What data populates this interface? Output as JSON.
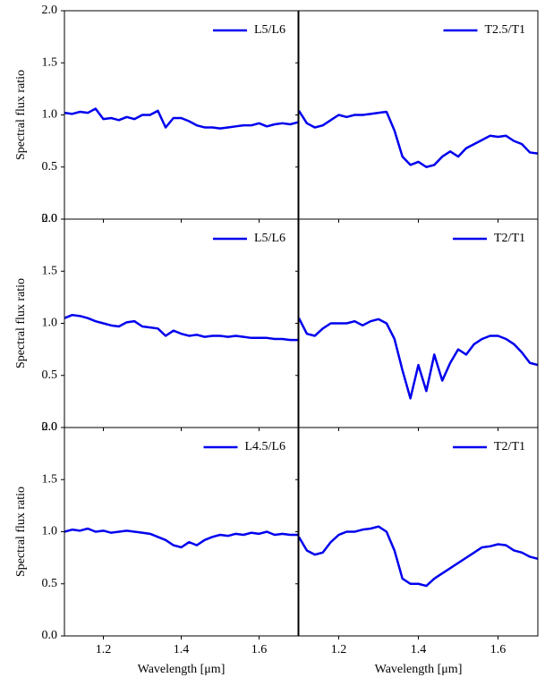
{
  "chart_data": [
    {
      "type": "line",
      "legend": "upper right",
      "ylabel": "Spectral flux ratio",
      "x": [
        1.1,
        1.12,
        1.14,
        1.16,
        1.18,
        1.2,
        1.22,
        1.24,
        1.26,
        1.28,
        1.3,
        1.32,
        1.34,
        1.36,
        1.38,
        1.4,
        1.42,
        1.44,
        1.46,
        1.48,
        1.5,
        1.52,
        1.54,
        1.56,
        1.58,
        1.6,
        1.62,
        1.64,
        1.66,
        1.68,
        1.7
      ],
      "series": [
        {
          "name": "L5/L6",
          "color": "#0000ee",
          "values": [
            1.02,
            1.01,
            1.03,
            1.02,
            1.06,
            0.96,
            0.97,
            0.95,
            0.98,
            0.96,
            1.0,
            1.0,
            1.04,
            0.88,
            0.97,
            0.97,
            0.94,
            0.9,
            0.88,
            0.88,
            0.87,
            0.88,
            0.89,
            0.9,
            0.9,
            0.92,
            0.89,
            0.91,
            0.92,
            0.91,
            0.93
          ]
        }
      ],
      "xlim": [
        1.1,
        1.7
      ],
      "ylim": [
        0,
        2
      ],
      "xticks": [
        1.2,
        1.4,
        1.6
      ],
      "yticks": [
        {
          "value": 0,
          "label": "0.0"
        },
        0.5,
        {
          "value": 1,
          "label": "1.0"
        },
        1.5,
        {
          "value": 2,
          "label": "2.0"
        }
      ]
    },
    {
      "type": "line",
      "legend": "upper right",
      "x": [
        1.1,
        1.12,
        1.14,
        1.16,
        1.18,
        1.2,
        1.22,
        1.24,
        1.26,
        1.28,
        1.3,
        1.32,
        1.34,
        1.36,
        1.38,
        1.4,
        1.42,
        1.44,
        1.46,
        1.48,
        1.5,
        1.52,
        1.54,
        1.56,
        1.58,
        1.6,
        1.62,
        1.64,
        1.66,
        1.68,
        1.7
      ],
      "series": [
        {
          "name": "T2.5/T1",
          "color": "#0000ee",
          "values": [
            1.04,
            0.92,
            0.88,
            0.9,
            0.95,
            1.0,
            0.98,
            1.0,
            1.0,
            1.01,
            1.02,
            1.03,
            0.85,
            0.6,
            0.52,
            0.55,
            0.5,
            0.52,
            0.6,
            0.65,
            0.6,
            0.68,
            0.72,
            0.76,
            0.8,
            0.79,
            0.8,
            0.75,
            0.72,
            0.64,
            0.63
          ]
        }
      ],
      "xlim": [
        1.1,
        1.7
      ],
      "ylim": [
        0,
        2
      ],
      "xticks": [
        1.2,
        1.4,
        1.6
      ],
      "yticks": [
        0,
        0.5,
        1,
        1.5,
        2
      ]
    },
    {
      "type": "line",
      "legend": "upper right",
      "ylabel": "Spectral flux ratio",
      "x": [
        1.1,
        1.12,
        1.14,
        1.16,
        1.18,
        1.2,
        1.22,
        1.24,
        1.26,
        1.28,
        1.3,
        1.32,
        1.34,
        1.36,
        1.38,
        1.4,
        1.42,
        1.44,
        1.46,
        1.48,
        1.5,
        1.52,
        1.54,
        1.56,
        1.58,
        1.6,
        1.62,
        1.64,
        1.66,
        1.68,
        1.7
      ],
      "series": [
        {
          "name": "L5/L6",
          "color": "#0000ee",
          "values": [
            1.05,
            1.08,
            1.07,
            1.05,
            1.02,
            1.0,
            0.98,
            0.97,
            1.01,
            1.02,
            0.97,
            0.96,
            0.95,
            0.88,
            0.93,
            0.9,
            0.88,
            0.89,
            0.87,
            0.88,
            0.88,
            0.87,
            0.88,
            0.87,
            0.86,
            0.86,
            0.86,
            0.85,
            0.85,
            0.84,
            0.84
          ]
        }
      ],
      "xlim": [
        1.1,
        1.7
      ],
      "ylim": [
        0,
        2
      ],
      "xticks": [
        1.2,
        1.4,
        1.6
      ],
      "yticks": [
        {
          "value": 0,
          "label": "0.0"
        },
        0.5,
        {
          "value": 1,
          "label": "1.0"
        },
        1.5,
        {
          "value": 2,
          "label": "2.0"
        }
      ]
    },
    {
      "type": "line",
      "legend": "upper right",
      "x": [
        1.1,
        1.12,
        1.14,
        1.16,
        1.18,
        1.2,
        1.22,
        1.24,
        1.26,
        1.28,
        1.3,
        1.32,
        1.34,
        1.36,
        1.38,
        1.4,
        1.42,
        1.44,
        1.46,
        1.48,
        1.5,
        1.52,
        1.54,
        1.56,
        1.58,
        1.6,
        1.62,
        1.64,
        1.66,
        1.68,
        1.7
      ],
      "series": [
        {
          "name": "T2/T1",
          "color": "#0000ee",
          "values": [
            1.05,
            0.9,
            0.88,
            0.95,
            1.0,
            1.0,
            1.0,
            1.02,
            0.98,
            1.02,
            1.04,
            1.0,
            0.85,
            0.55,
            0.28,
            0.6,
            0.35,
            0.7,
            0.45,
            0.62,
            0.75,
            0.7,
            0.8,
            0.85,
            0.88,
            0.88,
            0.85,
            0.8,
            0.72,
            0.62,
            0.6
          ]
        }
      ],
      "xlim": [
        1.1,
        1.7
      ],
      "ylim": [
        0,
        2
      ],
      "xticks": [
        1.2,
        1.4,
        1.6
      ],
      "yticks": [
        0,
        0.5,
        1,
        1.5,
        2
      ]
    },
    {
      "type": "line",
      "legend": "upper right",
      "ylabel": "Spectral flux ratio",
      "xlabel": "Wavelength [μm]",
      "x": [
        1.1,
        1.12,
        1.14,
        1.16,
        1.18,
        1.2,
        1.22,
        1.24,
        1.26,
        1.28,
        1.3,
        1.32,
        1.34,
        1.36,
        1.38,
        1.4,
        1.42,
        1.44,
        1.46,
        1.48,
        1.5,
        1.52,
        1.54,
        1.56,
        1.58,
        1.6,
        1.62,
        1.64,
        1.66,
        1.68,
        1.7
      ],
      "series": [
        {
          "name": "L4.5/L6",
          "color": "#0000ee",
          "values": [
            1.0,
            1.02,
            1.01,
            1.03,
            1.0,
            1.01,
            0.99,
            1.0,
            1.01,
            1.0,
            0.99,
            0.98,
            0.95,
            0.92,
            0.87,
            0.85,
            0.9,
            0.87,
            0.92,
            0.95,
            0.97,
            0.96,
            0.98,
            0.97,
            0.99,
            0.98,
            1.0,
            0.97,
            0.98,
            0.97,
            0.97
          ]
        }
      ],
      "xlim": [
        1.1,
        1.7
      ],
      "ylim": [
        0,
        2
      ],
      "xticks": [
        1.2,
        1.4,
        1.6
      ],
      "yticks": [
        {
          "value": 0,
          "label": "0.0"
        },
        0.5,
        {
          "value": 1,
          "label": "1.0"
        },
        1.5,
        {
          "value": 2,
          "label": "2.0"
        }
      ]
    },
    {
      "type": "line",
      "legend": "upper right",
      "xlabel": "Wavelength [μm]",
      "x": [
        1.1,
        1.12,
        1.14,
        1.16,
        1.18,
        1.2,
        1.22,
        1.24,
        1.26,
        1.28,
        1.3,
        1.32,
        1.34,
        1.36,
        1.38,
        1.4,
        1.42,
        1.44,
        1.46,
        1.48,
        1.5,
        1.52,
        1.54,
        1.56,
        1.58,
        1.6,
        1.62,
        1.64,
        1.66,
        1.68,
        1.7
      ],
      "series": [
        {
          "name": "T2/T1",
          "color": "#0000ee",
          "values": [
            0.95,
            0.82,
            0.78,
            0.8,
            0.9,
            0.97,
            1.0,
            1.0,
            1.02,
            1.03,
            1.05,
            1.0,
            0.82,
            0.55,
            0.5,
            0.5,
            0.48,
            0.55,
            0.6,
            0.65,
            0.7,
            0.75,
            0.8,
            0.85,
            0.86,
            0.88,
            0.87,
            0.82,
            0.8,
            0.76,
            0.74
          ]
        }
      ],
      "xlim": [
        1.1,
        1.7
      ],
      "ylim": [
        0,
        2
      ],
      "xticks": [
        1.2,
        1.4,
        1.6
      ],
      "yticks": [
        0,
        0.5,
        1,
        1.5,
        2
      ]
    }
  ]
}
